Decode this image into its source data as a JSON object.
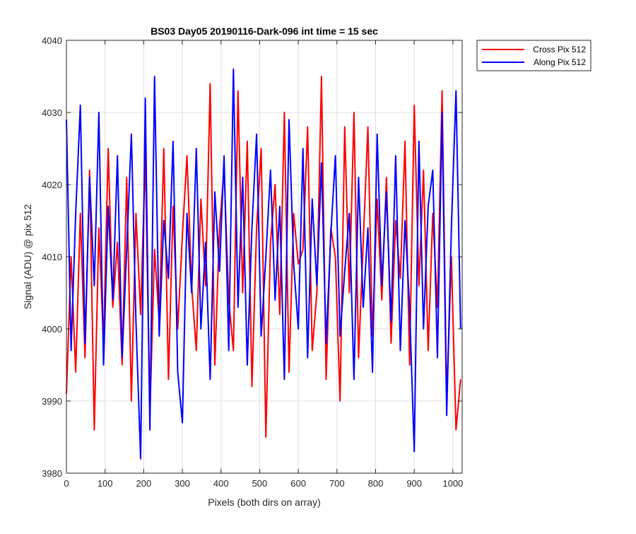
{
  "chart_data": {
    "type": "line",
    "title": "BS03 Day05 20190116-Dark-096 int time = 15 sec",
    "xlabel": "Pixels (both dirs on array)",
    "ylabel": "Signal (ADU) @ pix 512",
    "xlim": [
      0,
      1024
    ],
    "ylim": [
      3980,
      4040
    ],
    "xticks": [
      0,
      100,
      200,
      300,
      400,
      500,
      600,
      700,
      800,
      900,
      1000
    ],
    "yticks": [
      3980,
      3990,
      4000,
      4010,
      4020,
      4030,
      4040
    ],
    "grid": true,
    "legend_position": "outside-top-right",
    "series": [
      {
        "name": "Cross Pix 512",
        "color": "#ff0000",
        "x": [
          0,
          12,
          24,
          36,
          48,
          60,
          72,
          84,
          96,
          108,
          120,
          132,
          144,
          156,
          168,
          180,
          192,
          204,
          216,
          228,
          240,
          252,
          264,
          276,
          288,
          300,
          312,
          324,
          336,
          348,
          360,
          372,
          384,
          396,
          408,
          420,
          432,
          444,
          456,
          468,
          480,
          492,
          504,
          516,
          528,
          540,
          552,
          564,
          576,
          588,
          600,
          612,
          624,
          636,
          648,
          660,
          672,
          684,
          696,
          708,
          720,
          732,
          744,
          756,
          768,
          780,
          792,
          804,
          816,
          828,
          840,
          852,
          864,
          876,
          888,
          900,
          912,
          924,
          936,
          948,
          960,
          972,
          984,
          996,
          1008,
          1020
        ],
        "values": [
          3991,
          4010,
          3994,
          4016,
          3996,
          4022,
          3986,
          4014,
          3998,
          4025,
          4003,
          4012,
          3995,
          4021,
          3990,
          4016,
          4002,
          4024,
          3988,
          4011,
          4001,
          4025,
          3993,
          4017,
          4000,
          4013,
          4024,
          4006,
          3997,
          4018,
          4006,
          4034,
          3995,
          4014,
          4022,
          4004,
          3997,
          4033,
          4005,
          4026,
          3992,
          4014,
          4025,
          3985,
          4012,
          4020,
          4002,
          4030,
          3994,
          4016,
          4009,
          4011,
          4028,
          3997,
          4005,
          4035,
          3993,
          4014,
          4010,
          3990,
          4028,
          4005,
          4030,
          3996,
          4012,
          4028,
          3999,
          4018,
          4004,
          4021,
          3998,
          4015,
          4007,
          4026,
          3995,
          4031,
          4006,
          4022,
          3997,
          4016,
          4003,
          4033,
          3990,
          4010,
          3986,
          3993
        ]
      },
      {
        "name": "Along Pix 512",
        "color": "#0000ff",
        "x": [
          0,
          12,
          24,
          36,
          48,
          60,
          72,
          84,
          96,
          108,
          120,
          132,
          144,
          156,
          168,
          180,
          192,
          204,
          216,
          228,
          240,
          252,
          264,
          276,
          288,
          300,
          312,
          324,
          336,
          348,
          360,
          372,
          384,
          396,
          408,
          420,
          432,
          444,
          456,
          468,
          480,
          492,
          504,
          516,
          528,
          540,
          552,
          564,
          576,
          588,
          600,
          612,
          624,
          636,
          648,
          660,
          672,
          684,
          696,
          708,
          720,
          732,
          744,
          756,
          768,
          780,
          792,
          804,
          816,
          828,
          840,
          852,
          864,
          876,
          888,
          900,
          912,
          924,
          936,
          948,
          960,
          972,
          984,
          996,
          1008,
          1020
        ],
        "values": [
          4029,
          3997,
          4016,
          4031,
          3998,
          4021,
          4006,
          4030,
          3995,
          4017,
          4004,
          4024,
          3996,
          4011,
          4027,
          4001,
          3982,
          4032,
          3986,
          4035,
          3999,
          4015,
          4007,
          4026,
          3994,
          3987,
          4016,
          4005,
          4025,
          4000,
          4012,
          3993,
          4019,
          4008,
          4024,
          3997,
          4036,
          4003,
          4021,
          3995,
          4014,
          4027,
          3999,
          4010,
          4022,
          4004,
          4017,
          3993,
          4029,
          4009,
          4000,
          4025,
          3996,
          4018,
          4006,
          4023,
          3998,
          4013,
          4024,
          3999,
          4008,
          4016,
          3993,
          4021,
          4003,
          4014,
          3994,
          4027,
          4006,
          4019,
          4001,
          4024,
          3997,
          4015,
          4003,
          3983,
          4026,
          4000,
          4017,
          4022,
          3996,
          4030,
          3988,
          4014,
          4033,
          4000
        ]
      }
    ]
  }
}
